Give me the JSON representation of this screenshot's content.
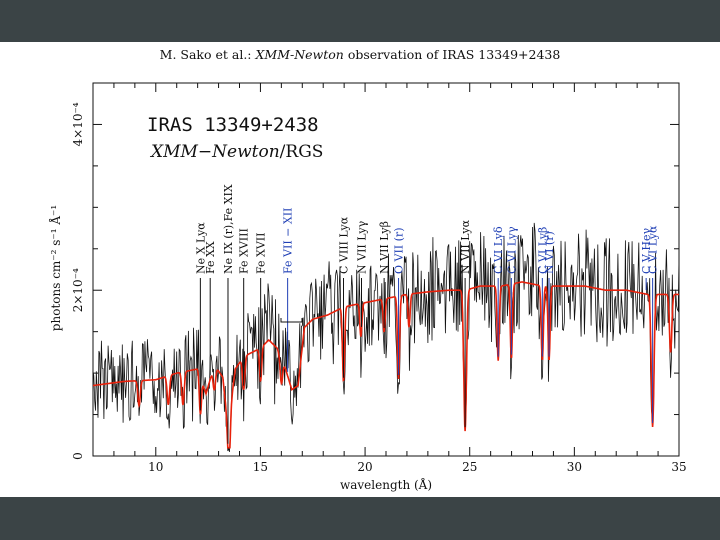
{
  "header": {
    "author": "M. Sako et al.:",
    "mission": "XMM-Newton",
    "rest": "observation of IRAS 13349+2438"
  },
  "chart_data": {
    "type": "line",
    "title": "IRAS 13349+2438",
    "subtitle_instrument": "XMM−Newton",
    "subtitle_detector": "/RGS",
    "xlabel": "wavelength (Å)",
    "ylabel": "photons cm⁻² s⁻¹ Å⁻¹",
    "xlim": [
      7,
      35
    ],
    "ylim": [
      0,
      0.00045
    ],
    "x_ticks": [
      {
        "value": 10,
        "label": "10"
      },
      {
        "value": 15,
        "label": "15"
      },
      {
        "value": 20,
        "label": "20"
      },
      {
        "value": 25,
        "label": "25"
      },
      {
        "value": 30,
        "label": "30"
      },
      {
        "value": 35,
        "label": "35"
      }
    ],
    "y_ticks": [
      {
        "value": 0,
        "label": "0"
      },
      {
        "value": 0.0002,
        "label": "2×10⁻⁴"
      },
      {
        "value": 0.0004,
        "label": "4×10⁻⁴"
      }
    ],
    "series": [
      {
        "name": "data",
        "color": "#111111"
      },
      {
        "name": "model",
        "color": "#e8210b"
      }
    ],
    "model_points": [
      [
        7.0,
        8.5e-05
      ],
      [
        8.5,
        9e-05
      ],
      [
        10.0,
        9.2e-05
      ],
      [
        11.0,
        0.0001
      ],
      [
        12.0,
        0.000105
      ],
      [
        12.4,
        7.5e-05
      ],
      [
        12.8,
        0.00011
      ],
      [
        13.2,
        9.5e-05
      ],
      [
        13.45,
        3.5e-05
      ],
      [
        13.8,
        0.000105
      ],
      [
        14.2,
        0.00012
      ],
      [
        15.0,
        0.00013
      ],
      [
        15.4,
        0.00014
      ],
      [
        15.8,
        0.00013
      ],
      [
        16.2,
        0.000105
      ],
      [
        16.5,
        8e-05
      ],
      [
        16.8,
        8.5e-05
      ],
      [
        17.1,
        0.000155
      ],
      [
        17.5,
        0.000165
      ],
      [
        18.2,
        0.00017
      ],
      [
        19.0,
        0.00018
      ],
      [
        20.0,
        0.000185
      ],
      [
        21.0,
        0.00019
      ],
      [
        22.0,
        0.000195
      ],
      [
        23.0,
        0.000198
      ],
      [
        24.0,
        0.0002
      ],
      [
        24.78,
        0.0002
      ],
      [
        25.5,
        0.000205
      ],
      [
        26.5,
        0.000205
      ],
      [
        27.5,
        0.00021
      ],
      [
        28.5,
        0.000205
      ],
      [
        29.5,
        0.000205
      ],
      [
        30.5,
        0.000205
      ],
      [
        31.5,
        0.0002
      ],
      [
        32.5,
        0.0002
      ],
      [
        33.5,
        0.000195
      ],
      [
        34.5,
        0.000195
      ],
      [
        35.0,
        0.000195
      ]
    ],
    "model_dips": [
      {
        "x": 9.2,
        "depth": 3e-05,
        "width": 0.08
      },
      {
        "x": 10.6,
        "depth": 3.5e-05,
        "width": 0.08
      },
      {
        "x": 11.3,
        "depth": 4e-05,
        "width": 0.08
      },
      {
        "x": 12.13,
        "depth": 4.5e-05,
        "width": 0.07
      },
      {
        "x": 12.8,
        "depth": 3e-05,
        "width": 0.08
      },
      {
        "x": 13.5,
        "depth": 6e-05,
        "width": 0.08
      },
      {
        "x": 14.2,
        "depth": 4e-05,
        "width": 0.08
      },
      {
        "x": 15.01,
        "depth": 4e-05,
        "width": 0.07
      },
      {
        "x": 16.0,
        "depth": 3e-05,
        "width": 0.08
      },
      {
        "x": 18.97,
        "depth": 9e-05,
        "width": 0.07
      },
      {
        "x": 19.8,
        "depth": 4e-05,
        "width": 0.07
      },
      {
        "x": 20.91,
        "depth": 4e-05,
        "width": 0.07
      },
      {
        "x": 21.6,
        "depth": 0.0001,
        "width": 0.07
      },
      {
        "x": 22.1,
        "depth": 4e-05,
        "width": 0.07
      },
      {
        "x": 24.78,
        "depth": 0.00017,
        "width": 0.09
      },
      {
        "x": 26.36,
        "depth": 9e-05,
        "width": 0.07
      },
      {
        "x": 26.99,
        "depth": 9e-05,
        "width": 0.07
      },
      {
        "x": 28.47,
        "depth": 9e-05,
        "width": 0.07
      },
      {
        "x": 28.79,
        "depth": 9e-05,
        "width": 0.07
      },
      {
        "x": 33.74,
        "depth": 0.00016,
        "width": 0.09
      },
      {
        "x": 34.6,
        "depth": 7e-05,
        "width": 0.08
      }
    ],
    "annotations": [
      {
        "text": "Ne X Lyα",
        "x": 12.13,
        "color": "#111111"
      },
      {
        "text": "Fe XX",
        "x": 12.6,
        "color": "#111111"
      },
      {
        "text": "Ne IX (r),Fe XIX",
        "x": 13.45,
        "color": "#111111"
      },
      {
        "text": "Fe XVIII",
        "x": 14.2,
        "color": "#111111"
      },
      {
        "text": "Fe XVII",
        "x": 15.01,
        "color": "#111111"
      },
      {
        "text": "Fe VII − XII",
        "x": 16.3,
        "color": "#1f3fb5"
      },
      {
        "text": "C VIII Lyα",
        "x": 18.97,
        "color": "#111111"
      },
      {
        "text": "N VII Lyγ",
        "x": 19.83,
        "color": "#111111"
      },
      {
        "text": "N VII Lyβ",
        "x": 20.91,
        "color": "#111111"
      },
      {
        "text": "O VII (r)",
        "x": 21.6,
        "color": "#1f3fb5"
      },
      {
        "text": "N VII Lyα",
        "x": 24.78,
        "color": "#111111"
      },
      {
        "text": "C VI Lyδ",
        "x": 26.36,
        "color": "#1f3fb5"
      },
      {
        "text": "C VI Lyγ",
        "x": 26.99,
        "color": "#1f3fb5"
      },
      {
        "text": "C VI Lyβ",
        "x": 28.47,
        "color": "#1f3fb5"
      },
      {
        "text": "N VI (r)",
        "x": 28.79,
        "color": "#1f3fb5"
      },
      {
        "text": "C V Heγ",
        "x": 33.43,
        "color": "#1f3fb5"
      },
      {
        "text": "C VI Lyα",
        "x": 33.74,
        "color": "#1f3fb5"
      }
    ]
  }
}
